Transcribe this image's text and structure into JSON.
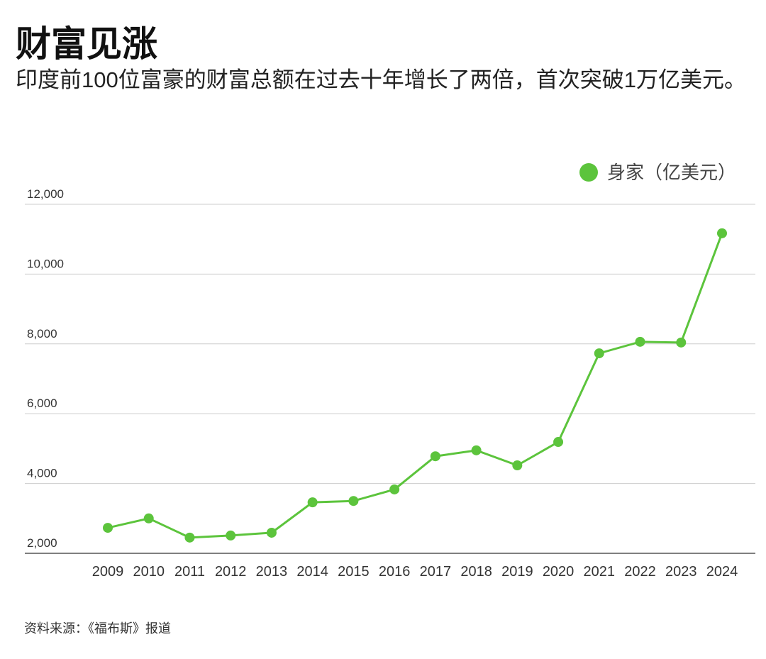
{
  "chart_data": {
    "type": "line",
    "title": "财富见涨",
    "subtitle": "印度前100位富豪的财富总额在过去十年增长了两倍，首次突破1万亿美元。",
    "source": "资料来源：《福布斯》报道",
    "categories": [
      "2009",
      "2010",
      "2011",
      "2012",
      "2013",
      "2014",
      "2015",
      "2016",
      "2017",
      "2018",
      "2019",
      "2020",
      "2021",
      "2022",
      "2023",
      "2024"
    ],
    "series": [
      {
        "name": "身家（亿美元）",
        "color": "#5cc43c",
        "values": [
          2730,
          3000,
          2450,
          2510,
          2590,
          3460,
          3500,
          3830,
          4780,
          4950,
          4520,
          5190,
          7730,
          8060,
          8040,
          11170
        ]
      }
    ],
    "ylim": [
      2000,
      12000
    ],
    "yticks": [
      {
        "value": 2000,
        "label": "2,000"
      },
      {
        "value": 4000,
        "label": "4,000"
      },
      {
        "value": 6000,
        "label": "6,000"
      },
      {
        "value": 8000,
        "label": "8,000"
      },
      {
        "value": 10000,
        "label": "10,000"
      },
      {
        "value": 12000,
        "label": "12,000"
      }
    ],
    "grid": true,
    "legend": "top-right"
  }
}
